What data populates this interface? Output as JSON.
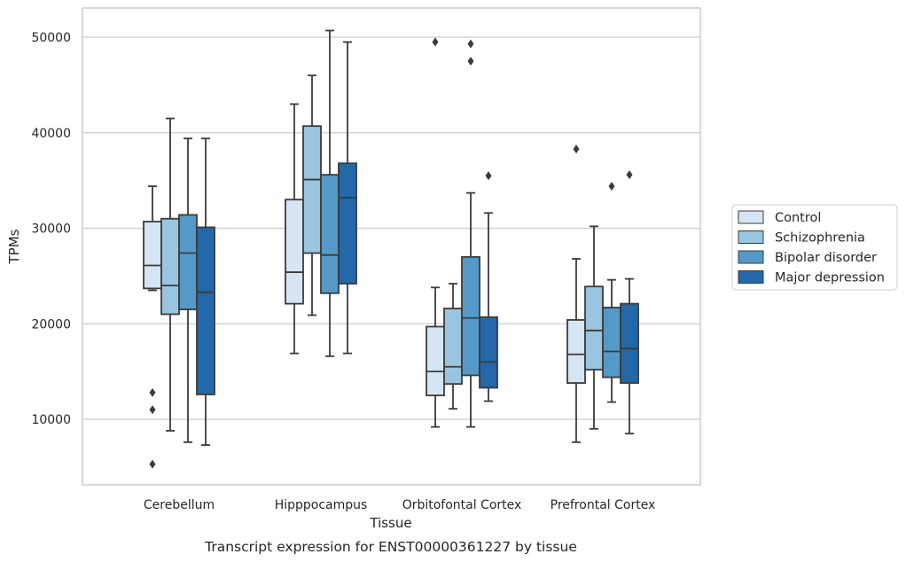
{
  "chart_data": {
    "type": "box",
    "caption": "Transcript expression for ENST00000361227 by tissue",
    "xlabel": "Tissue",
    "ylabel": "TPMs",
    "ylim": [
      3000,
      53000
    ],
    "yticks": [
      10000,
      20000,
      30000,
      40000,
      50000
    ],
    "grid": "horizontal",
    "legend_position": "right",
    "categories": [
      "Cerebellum",
      "Hipppocampus",
      "Orbitofontal Cortex",
      "Prefrontal Cortex"
    ],
    "series": [
      {
        "name": "Control",
        "color": "#d6e5f4",
        "boxes": [
          {
            "whislo": 23500,
            "q1": 23700,
            "med": 26100,
            "q3": 30700,
            "whishi": 34400,
            "fliers": [
              12800,
              11000,
              5300
            ]
          },
          {
            "whislo": 16900,
            "q1": 22100,
            "med": 25400,
            "q3": 33000,
            "whishi": 43000,
            "fliers": []
          },
          {
            "whislo": 9200,
            "q1": 12500,
            "med": 15000,
            "q3": 19700,
            "whishi": 23800,
            "fliers": []
          },
          {
            "whislo": 7600,
            "q1": 13800,
            "med": 16800,
            "q3": 20400,
            "whishi": 26800,
            "fliers": [
              38300
            ]
          }
        ]
      },
      {
        "name": "Schizophrenia",
        "color": "#9ac5e0",
        "boxes": [
          {
            "whislo": 8800,
            "q1": 21000,
            "med": 24000,
            "q3": 31000,
            "whishi": 41500,
            "fliers": []
          },
          {
            "whislo": 20900,
            "q1": 27400,
            "med": 35100,
            "q3": 40700,
            "whishi": 46000,
            "fliers": []
          },
          {
            "whislo": 11100,
            "q1": 13700,
            "med": 15500,
            "q3": 21600,
            "whishi": 24200,
            "fliers": []
          },
          {
            "whislo": 9000,
            "q1": 15200,
            "med": 19300,
            "q3": 23900,
            "whishi": 30200,
            "fliers": []
          }
        ]
      },
      {
        "name": "Bipolar disorder",
        "color": "#5599c8",
        "boxes": [
          {
            "whislo": 7600,
            "q1": 21500,
            "med": 27400,
            "q3": 31400,
            "whishi": 39400,
            "fliers": []
          },
          {
            "whislo": 16600,
            "q1": 23200,
            "med": 27200,
            "q3": 35600,
            "whishi": 50700,
            "fliers": []
          },
          {
            "whislo": 9200,
            "q1": 14600,
            "med": 20600,
            "q3": 27000,
            "whishi": 33700,
            "fliers": [
              49300,
              47500
            ]
          },
          {
            "whislo": 11800,
            "q1": 14400,
            "med": 17100,
            "q3": 21700,
            "whishi": 24600,
            "fliers": [
              34400
            ]
          }
        ]
      },
      {
        "name": "Major depression",
        "color": "#2368a8",
        "boxes": [
          {
            "whislo": 7300,
            "q1": 12600,
            "med": 23300,
            "q3": 30100,
            "whishi": 39400,
            "fliers": []
          },
          {
            "whislo": 16900,
            "q1": 24200,
            "med": 33200,
            "q3": 36800,
            "whishi": 49500,
            "fliers": []
          },
          {
            "whislo": 11900,
            "q1": 13300,
            "med": 16000,
            "q3": 20700,
            "whishi": 31600,
            "fliers": [
              35500
            ]
          },
          {
            "whislo": 8500,
            "q1": 13800,
            "med": 17400,
            "q3": 22100,
            "whishi": 24700,
            "fliers": [
              35600
            ]
          }
        ]
      }
    ],
    "extra_fliers": [
      {
        "category": 2,
        "series": 0,
        "value": 49500
      }
    ],
    "colors": {
      "box_edge": "#3b3b3b",
      "grid": "#cccccc",
      "frame": "#cccccc"
    }
  }
}
